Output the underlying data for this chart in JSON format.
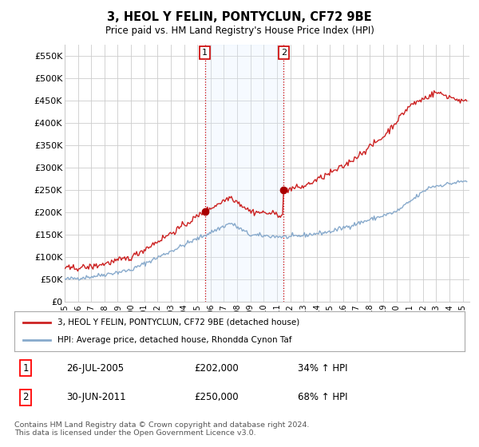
{
  "title": "3, HEOL Y FELIN, PONTYCLUN, CF72 9BE",
  "subtitle": "Price paid vs. HM Land Registry's House Price Index (HPI)",
  "ylim": [
    0,
    575000
  ],
  "yticks": [
    0,
    50000,
    100000,
    150000,
    200000,
    250000,
    300000,
    350000,
    400000,
    450000,
    500000,
    550000
  ],
  "ytick_labels": [
    "£0",
    "£50K",
    "£100K",
    "£150K",
    "£200K",
    "£250K",
    "£300K",
    "£350K",
    "£400K",
    "£450K",
    "£500K",
    "£550K"
  ],
  "background_color": "#ffffff",
  "grid_color": "#cccccc",
  "sale1_date": 2005.57,
  "sale1_price": 202000,
  "sale2_date": 2011.5,
  "sale2_price": 250000,
  "vline_color": "#cc0000",
  "marker_color": "#aa0000",
  "hpi_line_color": "#88aacc",
  "price_line_color": "#cc2222",
  "shade_color": "#ddeeff",
  "legend_line1": "3, HEOL Y FELIN, PONTYCLUN, CF72 9BE (detached house)",
  "legend_line2": "HPI: Average price, detached house, Rhondda Cynon Taf",
  "table_row1": [
    "1",
    "26-JUL-2005",
    "£202,000",
    "34% ↑ HPI"
  ],
  "table_row2": [
    "2",
    "30-JUN-2011",
    "£250,000",
    "68% ↑ HPI"
  ],
  "footnote": "Contains HM Land Registry data © Crown copyright and database right 2024.\nThis data is licensed under the Open Government Licence v3.0.",
  "xmin": 1995.0,
  "xmax": 2025.5,
  "label_box_color": "#cc0000"
}
